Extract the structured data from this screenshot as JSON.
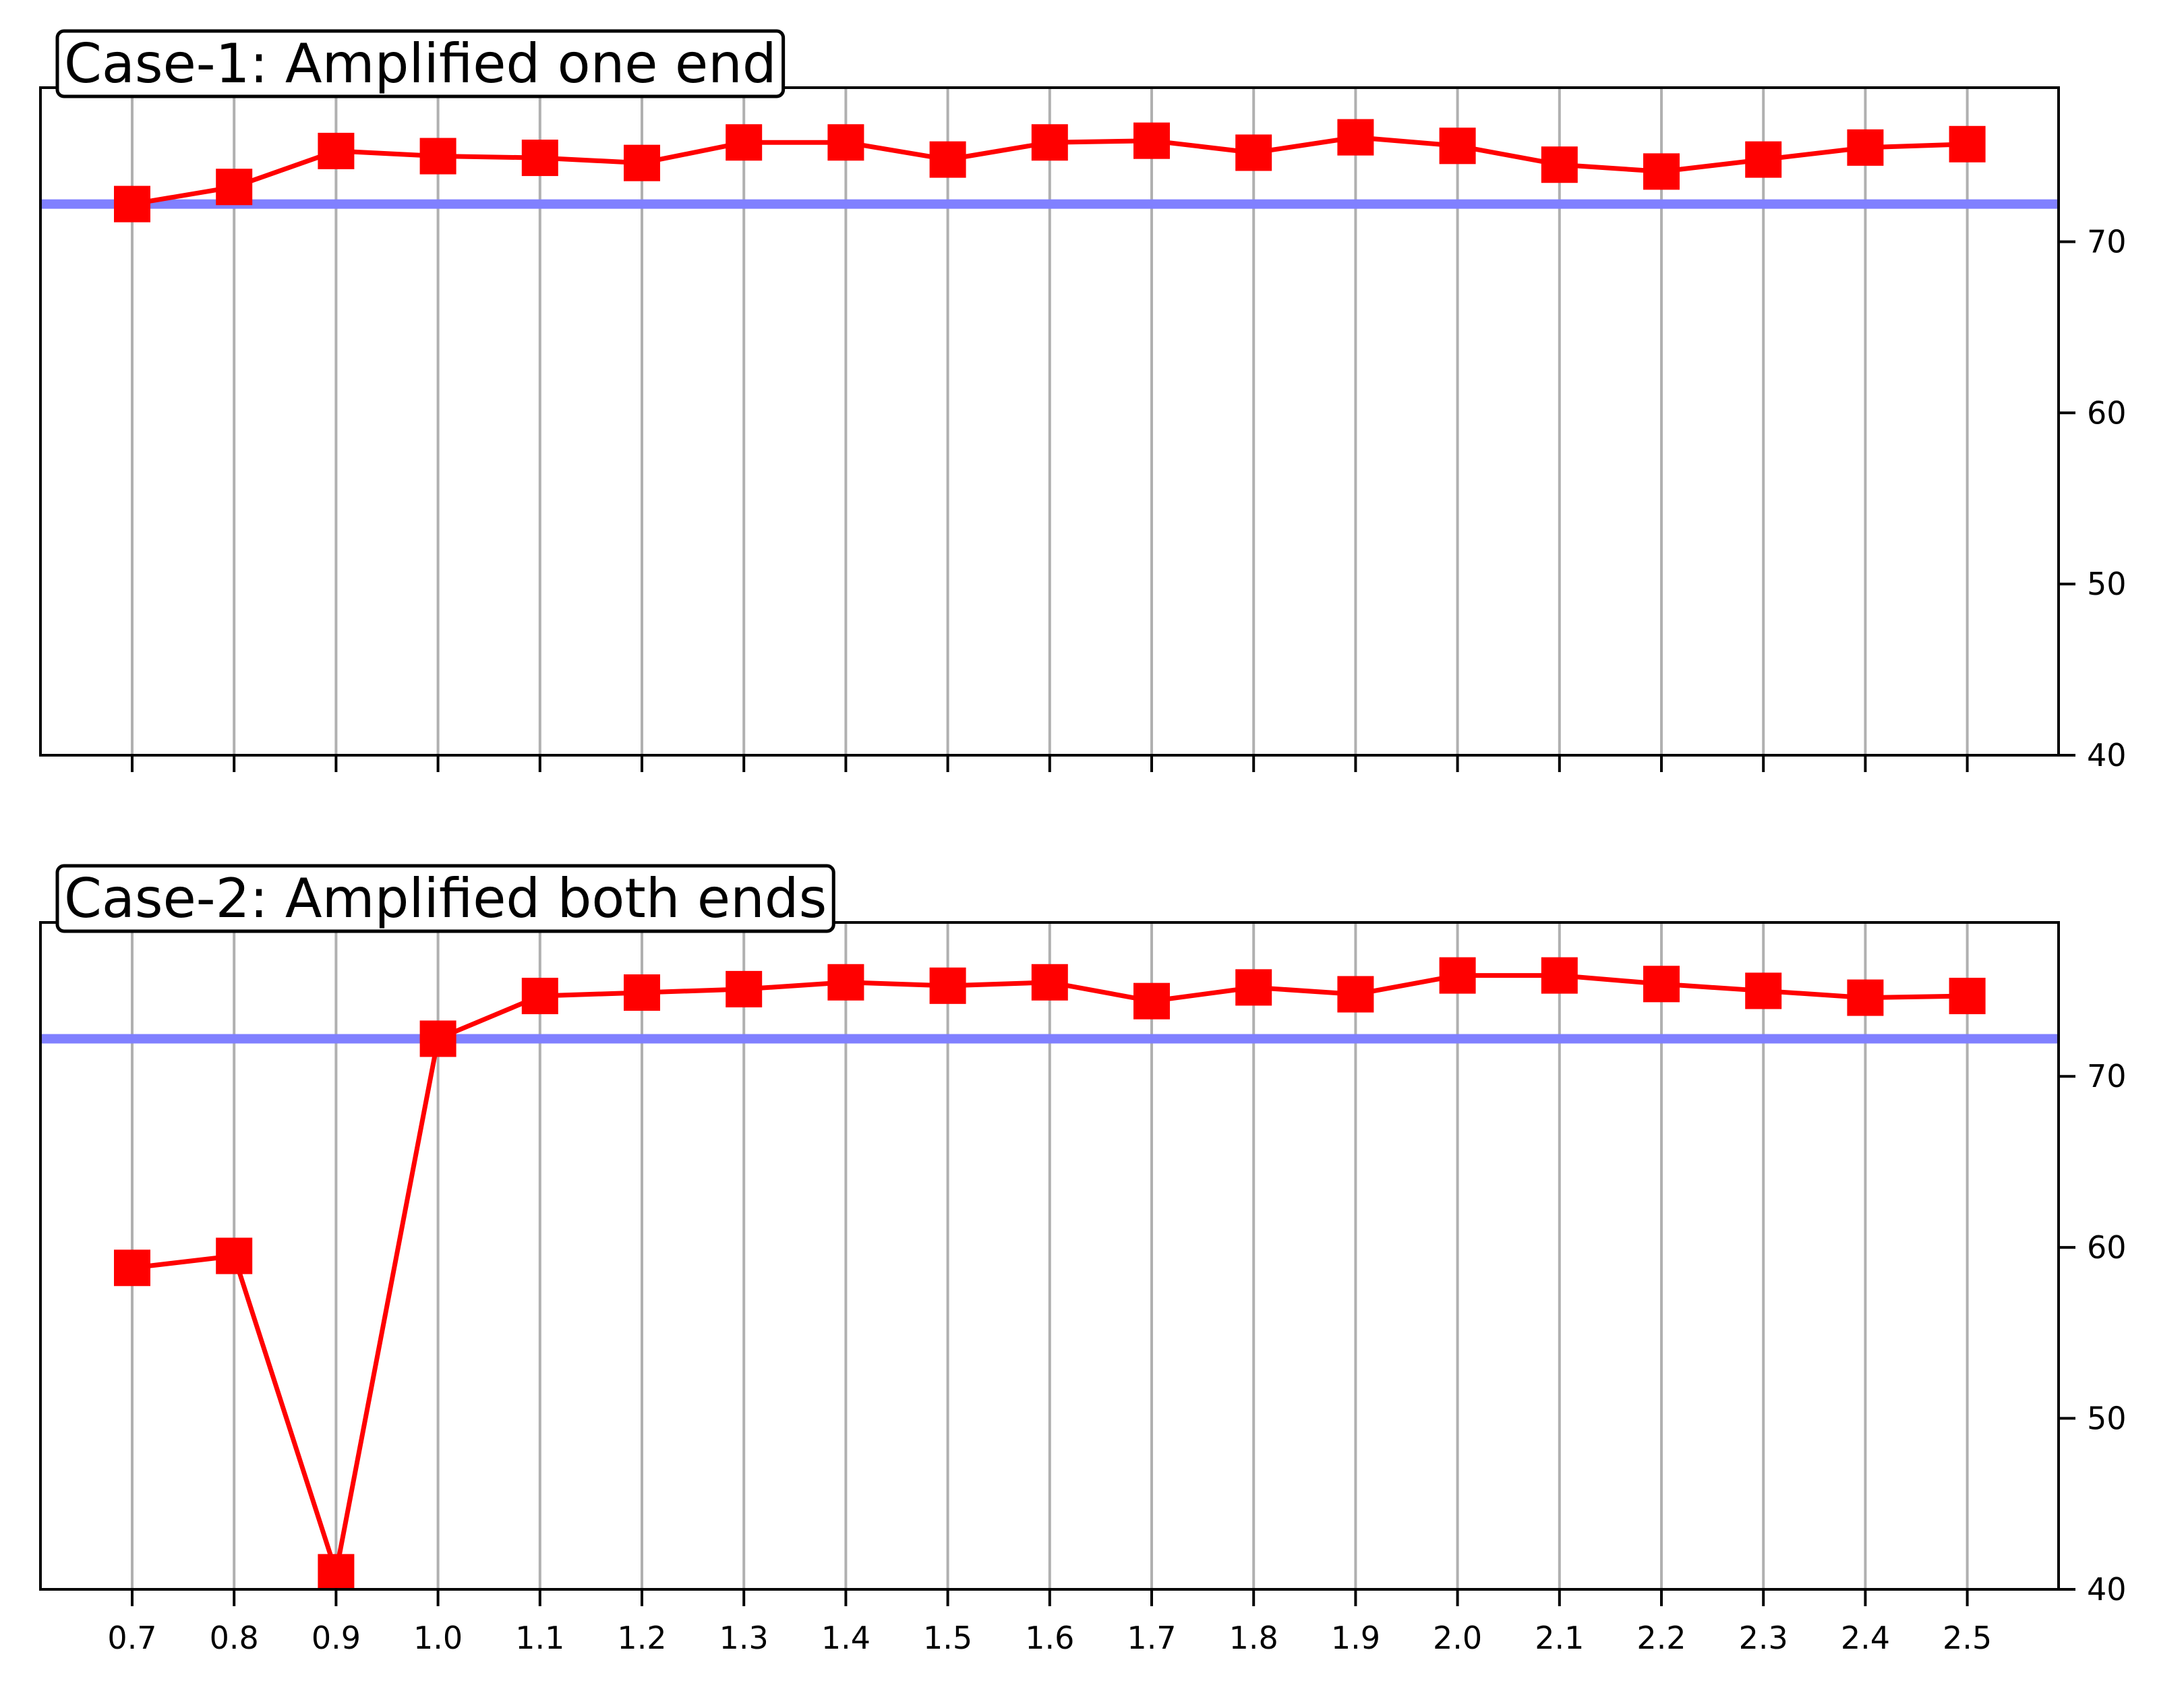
{
  "chart_data": [
    {
      "type": "line",
      "title": "Case-1: Amplified one end",
      "categories": [
        "0.7",
        "0.8",
        "0.9",
        "1.0",
        "1.1",
        "1.2",
        "1.3",
        "1.4",
        "1.5",
        "1.6",
        "1.7",
        "1.8",
        "1.9",
        "2.0",
        "2.1",
        "2.2",
        "2.3",
        "2.4",
        "2.5"
      ],
      "series": [
        {
          "color": "#ff0000",
          "marker": "square",
          "values": [
            72.2,
            73.2,
            75.3,
            75.0,
            74.9,
            74.6,
            75.8,
            75.8,
            74.8,
            75.8,
            75.9,
            75.2,
            76.1,
            75.6,
            74.5,
            74.1,
            74.8,
            75.5,
            75.7
          ]
        }
      ],
      "reference_line": {
        "y": 72.2,
        "color": "#8080ff"
      },
      "yticks": [
        40,
        50,
        60,
        70
      ],
      "ylim": [
        40,
        79
      ],
      "y_axis_side": "right",
      "show_x_tick_labels": false,
      "grid": "vertical"
    },
    {
      "type": "line",
      "title": "Case-2: Amplified both ends",
      "categories": [
        "0.7",
        "0.8",
        "0.9",
        "1.0",
        "1.1",
        "1.2",
        "1.3",
        "1.4",
        "1.5",
        "1.6",
        "1.7",
        "1.8",
        "1.9",
        "2.0",
        "2.1",
        "2.2",
        "2.3",
        "2.4",
        "2.5"
      ],
      "series": [
        {
          "color": "#ff0000",
          "marker": "square",
          "values": [
            58.8,
            59.5,
            41.0,
            72.2,
            74.7,
            74.9,
            75.1,
            75.5,
            75.3,
            75.5,
            74.4,
            75.2,
            74.8,
            75.9,
            75.9,
            75.4,
            75.0,
            74.6,
            74.7
          ]
        }
      ],
      "reference_line": {
        "y": 72.2,
        "color": "#8080ff"
      },
      "yticks": [
        40,
        50,
        60,
        70
      ],
      "ylim": [
        40,
        79
      ],
      "y_axis_side": "right",
      "show_x_tick_labels": true,
      "grid": "vertical"
    }
  ]
}
